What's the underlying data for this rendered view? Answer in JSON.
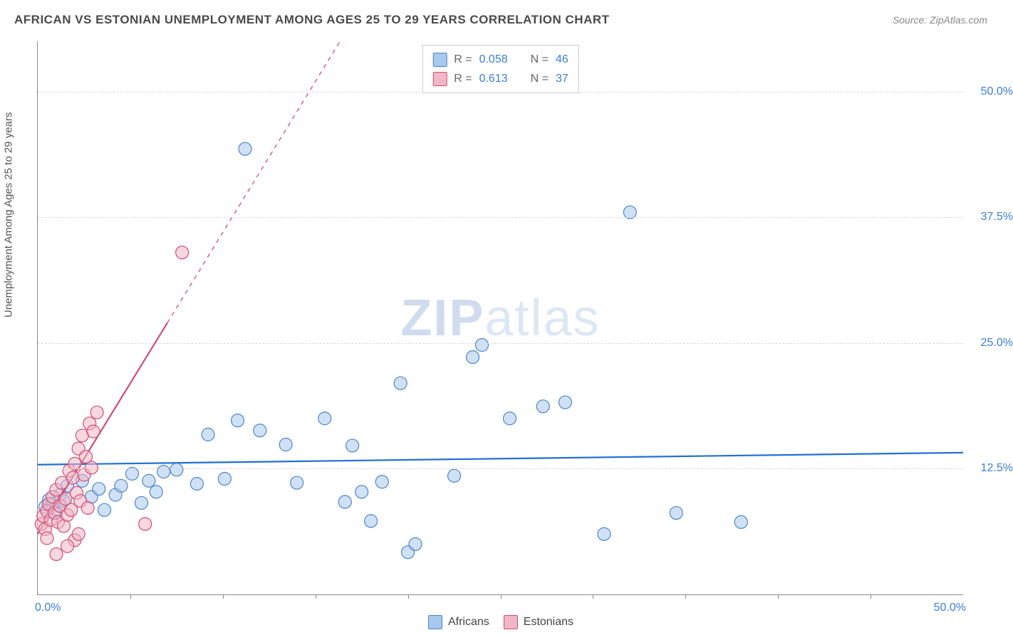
{
  "title": "AFRICAN VS ESTONIAN UNEMPLOYMENT AMONG AGES 25 TO 29 YEARS CORRELATION CHART",
  "source_label": "Source: ZipAtlas.com",
  "ylabel": "Unemployment Among Ages 25 to 29 years",
  "watermark": {
    "bold": "ZIP",
    "light": "atlas"
  },
  "chart": {
    "type": "scatter",
    "background_color": "#ffffff",
    "grid_color": "#d8d8d8",
    "axis_color": "#888888",
    "xlim": [
      0,
      50
    ],
    "ylim": [
      0,
      55
    ],
    "x_ticks": [
      5,
      10,
      15,
      20,
      25,
      30,
      35,
      40,
      45
    ],
    "y_gridlines": [
      12.5,
      25.0,
      37.5,
      50.0
    ],
    "y_tick_labels": [
      "12.5%",
      "25.0%",
      "37.5%",
      "50.0%"
    ],
    "xlim_labels": {
      "min": "0.0%",
      "max": "50.0%"
    },
    "marker_radius": 9,
    "marker_opacity": 0.55,
    "marker_stroke_width": 1.2,
    "trendline_width": 2.2,
    "series": [
      {
        "name": "Africans",
        "fill_color": "#a9c8ed",
        "stroke_color": "#4d87c7",
        "trend_color": "#1f6fd4",
        "trend_dashed_from_x": 50,
        "R_label": "R = ",
        "R_value": "0.058",
        "N_label": "N = ",
        "N_value": "46",
        "trendline": {
          "x1": 0,
          "y1": 12.9,
          "x2": 50,
          "y2": 14.1
        },
        "points": [
          [
            0.4,
            8.7
          ],
          [
            0.6,
            9.4
          ],
          [
            0.8,
            9.0
          ],
          [
            1.0,
            8.1
          ],
          [
            1.2,
            9.9
          ],
          [
            1.4,
            9.3
          ],
          [
            1.6,
            10.8
          ],
          [
            2.4,
            11.3
          ],
          [
            2.9,
            9.7
          ],
          [
            3.3,
            10.5
          ],
          [
            3.6,
            8.4
          ],
          [
            4.2,
            9.9
          ],
          [
            4.5,
            10.8
          ],
          [
            5.1,
            12.0
          ],
          [
            5.6,
            9.1
          ],
          [
            6.0,
            11.3
          ],
          [
            6.4,
            10.2
          ],
          [
            6.8,
            12.2
          ],
          [
            7.5,
            12.4
          ],
          [
            8.6,
            11.0
          ],
          [
            9.2,
            15.9
          ],
          [
            10.1,
            11.5
          ],
          [
            10.8,
            17.3
          ],
          [
            11.2,
            44.3
          ],
          [
            12.0,
            16.3
          ],
          [
            13.4,
            14.9
          ],
          [
            14.0,
            11.1
          ],
          [
            15.5,
            17.5
          ],
          [
            16.6,
            9.2
          ],
          [
            17.0,
            14.8
          ],
          [
            17.5,
            10.2
          ],
          [
            18.0,
            7.3
          ],
          [
            18.6,
            11.2
          ],
          [
            19.6,
            21.0
          ],
          [
            20.0,
            4.2
          ],
          [
            20.4,
            5.0
          ],
          [
            22.5,
            11.8
          ],
          [
            23.5,
            23.6
          ],
          [
            24.0,
            24.8
          ],
          [
            25.5,
            17.5
          ],
          [
            27.3,
            18.7
          ],
          [
            28.5,
            19.1
          ],
          [
            30.6,
            6.0
          ],
          [
            34.5,
            8.1
          ],
          [
            38.0,
            7.2
          ],
          [
            32.0,
            38.0
          ]
        ]
      },
      {
        "name": "Estonians",
        "fill_color": "#f1b7c7",
        "stroke_color": "#d24d74",
        "trend_color": "#d24d74",
        "trend_dashed_from_x": 7,
        "R_label": "R = ",
        "R_value": "0.613",
        "N_label": "N = ",
        "N_value": "37",
        "trendline": {
          "x1": 0,
          "y1": 6.0,
          "x2": 23,
          "y2": 75
        },
        "points": [
          [
            0.2,
            7.0
          ],
          [
            0.3,
            7.8
          ],
          [
            0.4,
            6.5
          ],
          [
            0.5,
            8.3
          ],
          [
            0.6,
            9.0
          ],
          [
            0.7,
            7.4
          ],
          [
            0.8,
            9.7
          ],
          [
            0.9,
            8.1
          ],
          [
            1.0,
            10.4
          ],
          [
            1.1,
            7.2
          ],
          [
            1.2,
            8.8
          ],
          [
            1.3,
            11.1
          ],
          [
            1.4,
            6.8
          ],
          [
            1.5,
            9.5
          ],
          [
            1.6,
            7.9
          ],
          [
            1.7,
            12.3
          ],
          [
            1.8,
            8.4
          ],
          [
            1.9,
            11.6
          ],
          [
            2.0,
            5.4
          ],
          [
            2.0,
            13.0
          ],
          [
            2.1,
            10.1
          ],
          [
            2.2,
            14.5
          ],
          [
            2.3,
            9.3
          ],
          [
            2.4,
            15.8
          ],
          [
            2.5,
            11.9
          ],
          [
            2.6,
            13.7
          ],
          [
            2.7,
            8.6
          ],
          [
            2.8,
            17.0
          ],
          [
            2.9,
            12.6
          ],
          [
            3.0,
            16.2
          ],
          [
            3.2,
            18.1
          ],
          [
            1.0,
            4.0
          ],
          [
            1.6,
            4.8
          ],
          [
            2.2,
            6.0
          ],
          [
            5.8,
            7.0
          ],
          [
            7.8,
            34.0
          ],
          [
            0.5,
            5.6
          ]
        ]
      }
    ]
  },
  "legend_bottom": [
    {
      "label": "Africans",
      "fill": "#a9c8ed",
      "stroke": "#4d87c7"
    },
    {
      "label": "Estonians",
      "fill": "#f1b7c7",
      "stroke": "#d24d74"
    }
  ]
}
